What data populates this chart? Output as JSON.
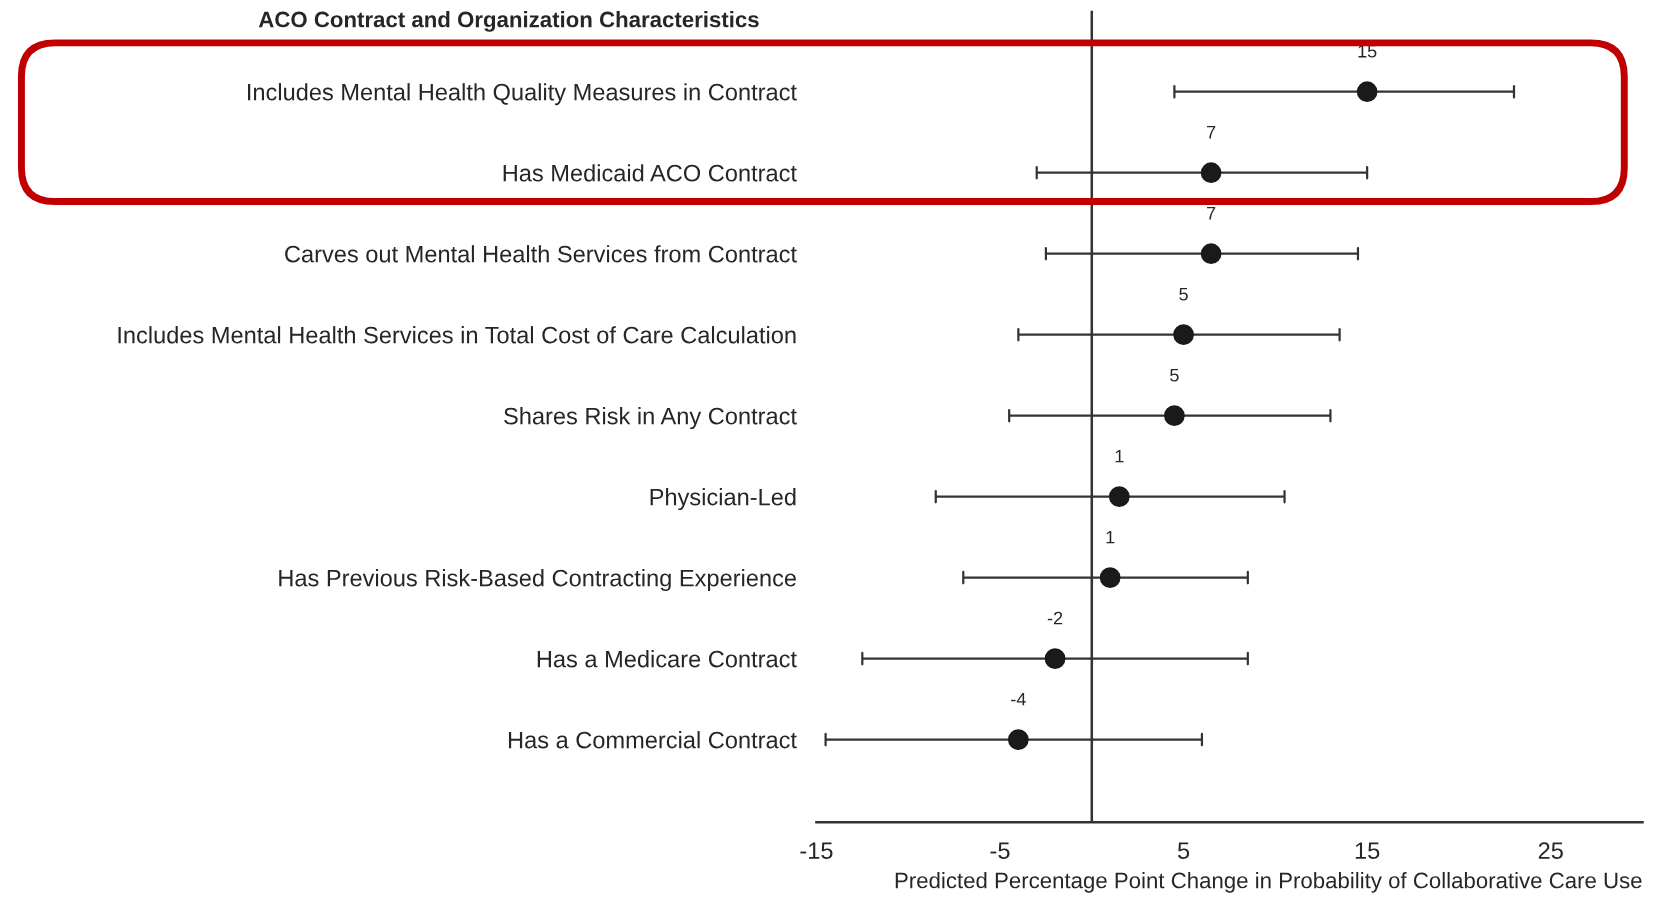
{
  "chart_data": {
    "type": "scatter",
    "title": "ACO Contract and Organization Characteristics",
    "xlabel": "Predicted Percentage Point Change in Probability of Collaborative Care Use",
    "categories": [
      "Includes Mental Health Quality Measures in Contract",
      "Has Medicaid ACO Contract",
      "Carves out Mental Health Services from Contract",
      "Includes Mental Health Services in Total Cost of Care Calculation",
      "Shares Risk in Any Contract",
      "Physician-Led",
      "Has Previous Risk-Based Contracting Experience",
      "Has a Medicare Contract",
      "Has a Commercial Contract"
    ],
    "values": [
      15,
      6.5,
      6.5,
      5,
      4.5,
      1.5,
      1,
      -2,
      -4
    ],
    "errors": [
      [
        4.5,
        23
      ],
      [
        -3,
        15
      ],
      [
        -2.5,
        14.5
      ],
      [
        -4,
        13.5
      ],
      [
        -4.5,
        13
      ],
      [
        -8.5,
        10.5
      ],
      [
        -7,
        8.5
      ],
      [
        -12.5,
        8.5
      ],
      [
        -14.5,
        6
      ]
    ],
    "value_labels": [
      "15",
      "7",
      "7",
      "5",
      "5",
      "1",
      "1",
      "-2",
      "-4"
    ],
    "color": "#1a1a1a",
    "marker": "circle",
    "orientation": "horizontal",
    "xlim": [
      -15,
      30
    ],
    "xticks": [
      -15,
      -5,
      5,
      15,
      25
    ],
    "ref_lines": [
      {
        "axis": "x",
        "value": 0,
        "color": "#333333"
      }
    ],
    "grid": false,
    "legend": false
  }
}
